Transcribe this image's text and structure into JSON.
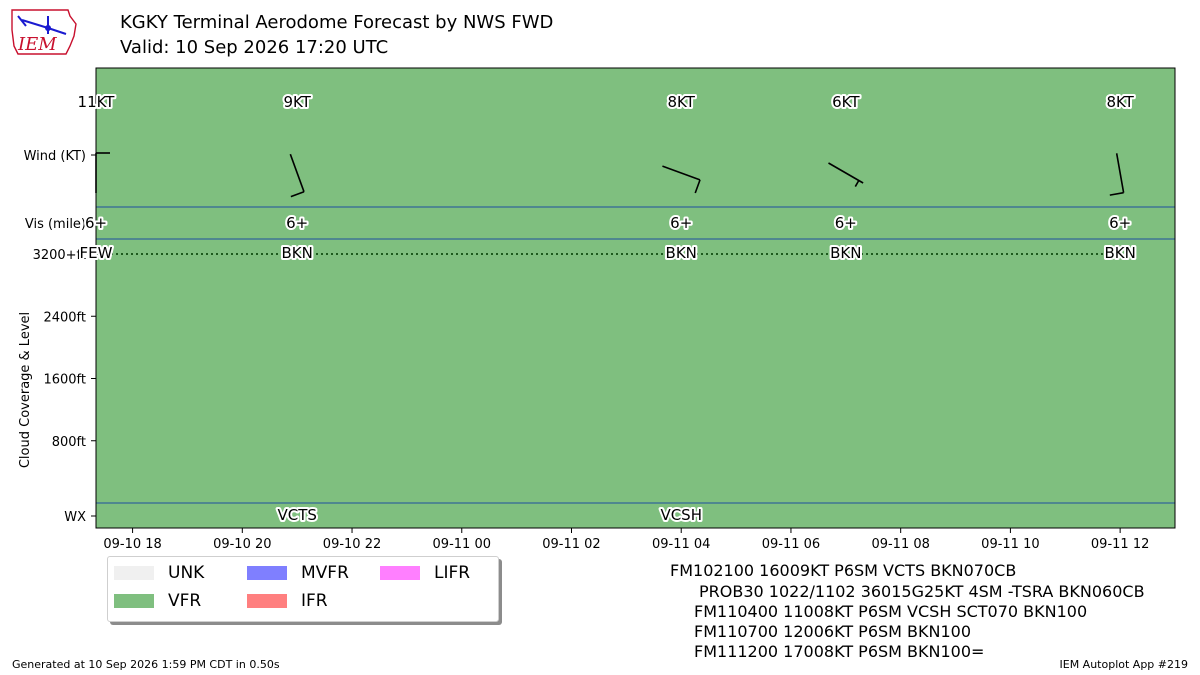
{
  "header": {
    "title": "KGKY Terminal Aerodome Forecast by NWS FWD",
    "subtitle": "Valid: 10 Sep 2026 17:20 UTC",
    "logo_text": "IEM"
  },
  "chart_data": {
    "type": "timeline",
    "background_category": "VFR",
    "row_labels": {
      "wind": "Wind (KT)",
      "vis": "Vis (mile)",
      "wx": "WX"
    },
    "ylabel": "Cloud Coverage & Level",
    "y_ticks": [
      {
        "value": 800,
        "label": "800ft"
      },
      {
        "value": 1600,
        "label": "1600ft"
      },
      {
        "value": 2400,
        "label": "2400ft"
      },
      {
        "value": 3200,
        "label": "3200+ft"
      }
    ],
    "ylim": [
      0,
      3200
    ],
    "xlim": [
      "2026-09-10 17:20",
      "2026-09-11 13:00"
    ],
    "x_ticks": [
      {
        "time": "2026-09-10 18:00",
        "label": "09-10 18"
      },
      {
        "time": "2026-09-10 20:00",
        "label": "09-10 20"
      },
      {
        "time": "2026-09-10 22:00",
        "label": "09-10 22"
      },
      {
        "time": "2026-09-11 00:00",
        "label": "09-11 00"
      },
      {
        "time": "2026-09-11 02:00",
        "label": "09-11 02"
      },
      {
        "time": "2026-09-11 04:00",
        "label": "09-11 04"
      },
      {
        "time": "2026-09-11 06:00",
        "label": "09-11 06"
      },
      {
        "time": "2026-09-11 08:00",
        "label": "09-11 08"
      },
      {
        "time": "2026-09-11 10:00",
        "label": "09-11 10"
      },
      {
        "time": "2026-09-11 12:00",
        "label": "09-11 12"
      }
    ],
    "forecasts": [
      {
        "time": "2026-09-10 17:20",
        "wind_label": "11KT",
        "wind_dir": 360,
        "wind_speed": 11,
        "vis_label": "6+",
        "sky_label": "FEW",
        "sky_level": 3200,
        "wx": ""
      },
      {
        "time": "2026-09-10 21:00",
        "wind_label": "9KT",
        "wind_dir": 160,
        "wind_speed": 9,
        "vis_label": "6+",
        "sky_label": "BKN",
        "sky_level": 3200,
        "wx": "VCTS"
      },
      {
        "time": "2026-09-11 04:00",
        "wind_label": "8KT",
        "wind_dir": 110,
        "wind_speed": 8,
        "vis_label": "6+",
        "sky_label": "BKN",
        "sky_level": 3200,
        "wx": "VCSH"
      },
      {
        "time": "2026-09-11 07:00",
        "wind_label": "6KT",
        "wind_dir": 120,
        "wind_speed": 6,
        "vis_label": "6+",
        "sky_label": "BKN",
        "sky_level": 3200,
        "wx": ""
      },
      {
        "time": "2026-09-11 12:00",
        "wind_label": "8KT",
        "wind_dir": 170,
        "wind_speed": 8,
        "vis_label": "6+",
        "sky_label": "BKN",
        "sky_level": 3200,
        "wx": ""
      }
    ]
  },
  "legend": [
    {
      "label": "UNK",
      "color": "#f0f0f0"
    },
    {
      "label": "VFR",
      "color": "#7fbf7f"
    },
    {
      "label": "MVFR",
      "color": "#7f7fff"
    },
    {
      "label": "IFR",
      "color": "#ff7f7f"
    },
    {
      "label": "LIFR",
      "color": "#ff7fff"
    }
  ],
  "taf_text": [
    "FM102100 16009KT P6SM VCTS BKN070CB",
    "PROB30 1022/1102 36015G25KT 4SM -TSRA BKN060CB",
    "FM110400 11008KT P6SM VCSH SCT070 BKN100",
    "FM110700 12006KT P6SM BKN100",
    "FM111200 17008KT P6SM BKN100="
  ],
  "footer": {
    "generated": "Generated at 10 Sep 2026 1:59 PM CDT in 0.50s",
    "app": "IEM Autoplot App #219"
  },
  "colors": {
    "plot_background": "#7fbf7f",
    "row_separator": "#1f4f9f",
    "logo_red": "#c8102e",
    "logo_blue": "#1a1ad0"
  }
}
